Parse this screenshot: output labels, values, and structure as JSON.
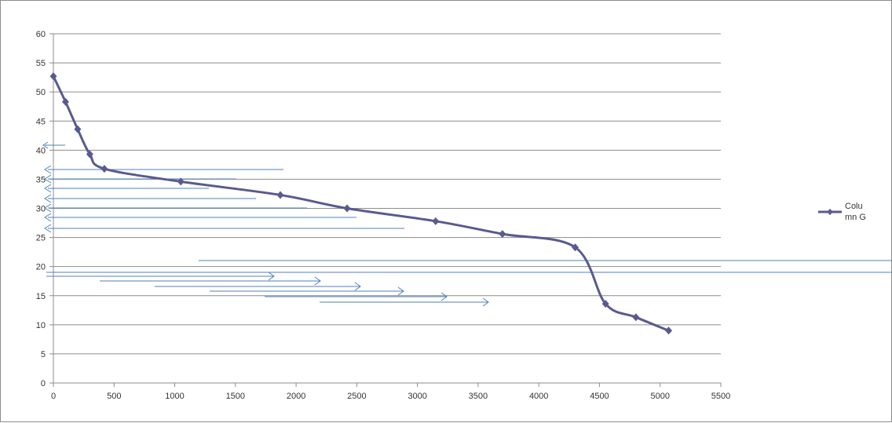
{
  "chart_data": {
    "type": "scatter",
    "title": "",
    "xlabel": "",
    "ylabel": "",
    "xlim": [
      0,
      5500
    ],
    "ylim": [
      0,
      60
    ],
    "x_ticks": [
      0,
      500,
      1000,
      1500,
      2000,
      2500,
      3000,
      3500,
      4000,
      4500,
      5000,
      5500
    ],
    "y_ticks": [
      0,
      5,
      10,
      15,
      20,
      25,
      30,
      35,
      40,
      45,
      50,
      55,
      60
    ],
    "grid": "horizontal",
    "legend_position": "right",
    "smooth": true,
    "series": [
      {
        "name": "Column G",
        "color": "#595a8f",
        "marker": "diamond",
        "x": [
          0,
          100,
          200,
          300,
          420,
          1050,
          1870,
          2420,
          3150,
          3700,
          4300,
          4550,
          4800,
          5070
        ],
        "y": [
          52.7,
          48.3,
          43.6,
          39.3,
          36.8,
          34.6,
          32.3,
          30.0,
          27.8,
          25.6,
          23.3,
          13.6,
          11.3,
          9.0
        ]
      }
    ]
  },
  "legend": {
    "label_line1": "Colu",
    "label_line2": "mn G"
  },
  "colors": {
    "series": "#595a8f",
    "gridline": "#8c8c8c",
    "annotation_lines": "#4f81bd"
  }
}
